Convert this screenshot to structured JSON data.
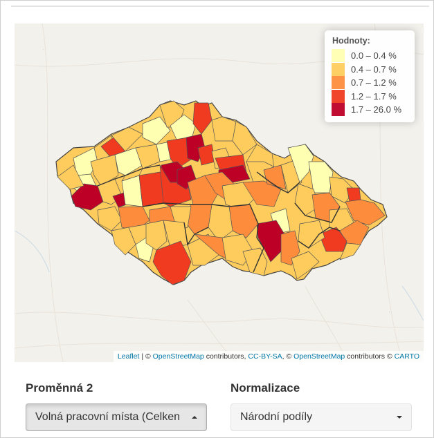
{
  "legend": {
    "title": "Hodnoty:",
    "items": [
      {
        "label": "0.0 – 0.4 %",
        "color": "#ffffb2"
      },
      {
        "label": "0.4 – 0.7 %",
        "color": "#fecc5c"
      },
      {
        "label": "0.7 – 1.2 %",
        "color": "#fd8d3c"
      },
      {
        "label": "1.2 – 1.7 %",
        "color": "#f03b20"
      },
      {
        "label": "1.7 – 26.0 %",
        "color": "#bd0026"
      }
    ]
  },
  "attribution": {
    "leaflet": "Leaflet",
    "sep1": " | © ",
    "osm1": "OpenStreetMap",
    "contrib1": " contributors, ",
    "ccbysa": "CC-BY-SA",
    "sep2": ", © ",
    "osm2": "OpenStreetMap",
    "contrib2": " contributors © ",
    "carto": "CARTO"
  },
  "controls": {
    "variable_label": "Proměnná 2",
    "variable_value": "Volná pracovní místa (Celken",
    "normalization_label": "Normalizace",
    "normalization_value": "Národní podíly"
  }
}
